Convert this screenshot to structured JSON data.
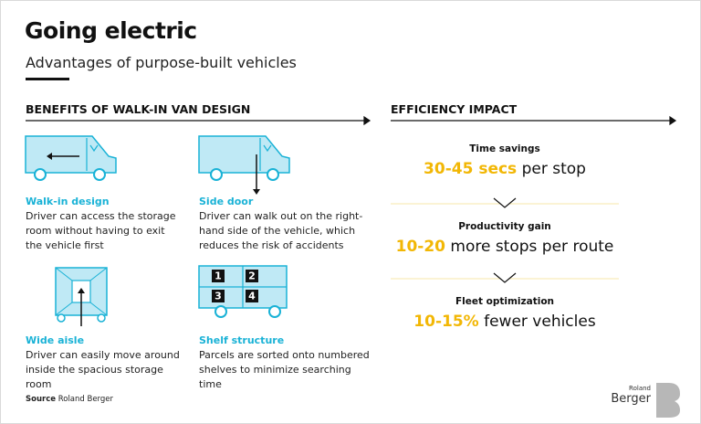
{
  "header": {
    "title": "Going electric",
    "subtitle": "Advantages of purpose-built vehicles"
  },
  "left": {
    "heading": "BENEFITS OF WALK-IN VAN DESIGN",
    "items": [
      {
        "title": "Walk-in design",
        "lines": [
          "Driver can access the storage",
          "room without having to exit",
          "the vehicle first"
        ]
      },
      {
        "title": "Side door",
        "lines": [
          "Driver can walk out on the right-",
          "hand side of the vehicle, which",
          "reduces the risk of accidents"
        ]
      },
      {
        "title": "Wide aisle",
        "lines": [
          "Driver can easily move around",
          "inside the spacious storage",
          "room"
        ]
      },
      {
        "title": "Shelf structure",
        "lines": [
          "Parcels are sorted onto numbered",
          "shelves to minimize searching",
          "time"
        ],
        "shelf_numbers": [
          "1",
          "2",
          "3",
          "4"
        ]
      }
    ]
  },
  "right": {
    "heading": "EFFICIENCY IMPACT",
    "metrics": [
      {
        "label": "Time savings",
        "value": "30-45 secs",
        "unit": "per stop"
      },
      {
        "label": "Productivity gain",
        "value": "10-20",
        "unit": "more stops per route"
      },
      {
        "label": "Fleet optimization",
        "value": "10-15%",
        "unit": "fewer vehicles"
      }
    ]
  },
  "footer": {
    "source_label": "Source",
    "source": "Roland Berger",
    "logo": [
      "Roland",
      "Berger"
    ]
  }
}
